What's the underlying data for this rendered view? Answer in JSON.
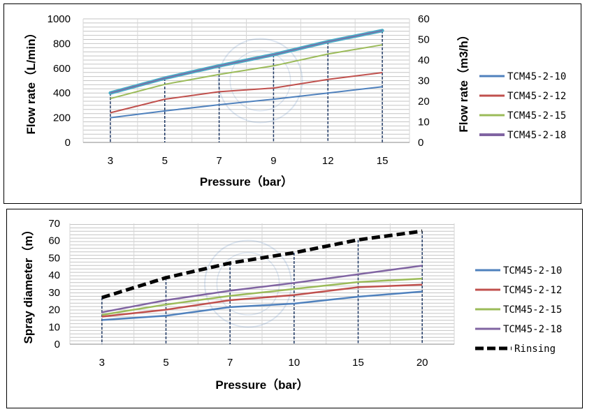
{
  "chart_data": [
    {
      "type": "line",
      "x_type": "category",
      "categories": [
        "3",
        "5",
        "7",
        "9",
        "12",
        "15"
      ],
      "ylabel": "Flow rate（L/min）",
      "y2label": "Flow rate（m3/h）",
      "xlabel": "Pressure（bar）",
      "ylim": [
        0,
        1000
      ],
      "yticks": [
        "0",
        "200",
        "400",
        "600",
        "800",
        "1000"
      ],
      "y2lim": [
        0,
        60
      ],
      "y2ticks": [
        "0",
        "10",
        "20",
        "30",
        "40",
        "50",
        "60"
      ],
      "grid": true,
      "legend_position": "right",
      "series": [
        {
          "name": "TCM45-2-10",
          "color": "#4f81bd",
          "values": [
            200,
            255,
            305,
            350,
            400,
            450
          ]
        },
        {
          "name": "TCM45-2-12",
          "color": "#c0504d",
          "values": [
            240,
            350,
            410,
            440,
            510,
            565
          ]
        },
        {
          "name": "TCM45-2-15",
          "color": "#9bbb59",
          "values": [
            355,
            470,
            550,
            620,
            715,
            790
          ]
        },
        {
          "name": "TCM45-2-18",
          "color": "#8064a2",
          "values": [
            400,
            520,
            620,
            710,
            815,
            905
          ]
        }
      ],
      "highlight_series": "TCM45-2-18",
      "highlight_color": "#4bacc6"
    },
    {
      "type": "line",
      "x_type": "category",
      "categories": [
        "3",
        "5",
        "7",
        "10",
        "15",
        "20"
      ],
      "ylabel": "Spray diameter（m）",
      "xlabel": "Pressure（bar）",
      "ylim": [
        0,
        70
      ],
      "yticks": [
        "0",
        "10",
        "20",
        "30",
        "40",
        "50",
        "60",
        "70"
      ],
      "grid": true,
      "legend_position": "right",
      "series": [
        {
          "name": "TCM45-2-10",
          "color": "#4f81bd",
          "values": [
            14,
            16.5,
            21.5,
            23.5,
            27.5,
            30.5
          ]
        },
        {
          "name": "TCM45-2-12",
          "color": "#c0504d",
          "values": [
            16,
            20,
            25.5,
            28.5,
            33,
            34.5
          ]
        },
        {
          "name": "TCM45-2-15",
          "color": "#9bbb59",
          "values": [
            17,
            23,
            28,
            32,
            36,
            38
          ]
        },
        {
          "name": "TCM45-2-18",
          "color": "#8064a2",
          "values": [
            18.5,
            25.5,
            31,
            35.5,
            40.5,
            45.5
          ]
        },
        {
          "name": "Rinsing",
          "color": "#000000",
          "dashed": true,
          "values": [
            27,
            38.5,
            47,
            53,
            60.5,
            65.5
          ]
        }
      ]
    }
  ]
}
